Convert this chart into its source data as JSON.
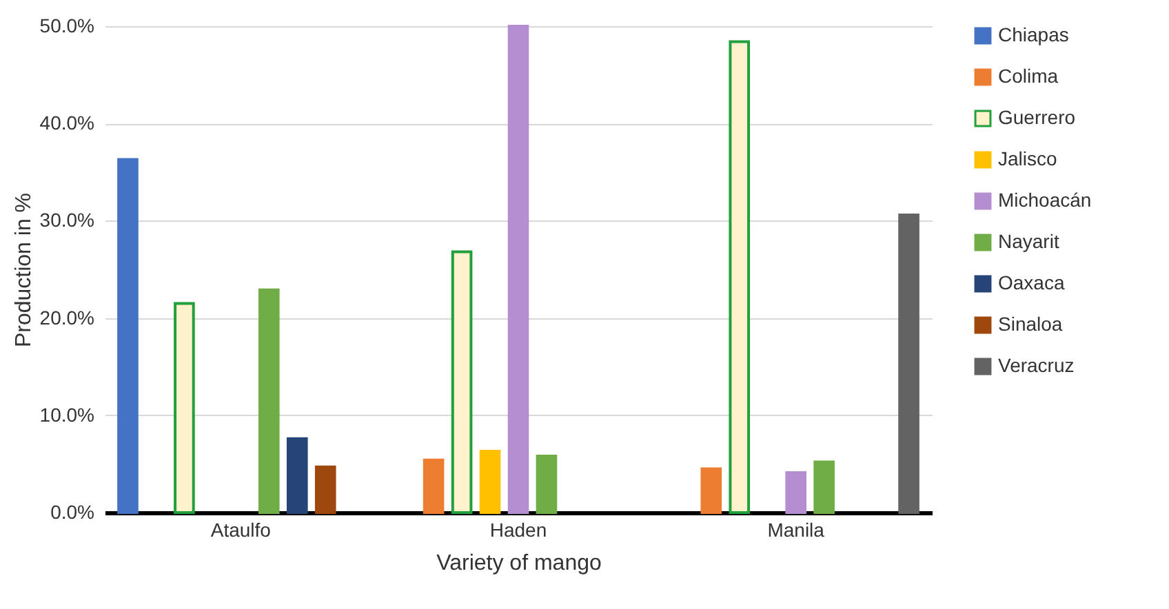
{
  "chart_data": {
    "type": "bar",
    "xlabel": "Variety of mango",
    "ylabel": "Production in %",
    "categories": [
      "Ataulfo",
      "Haden",
      "Manila"
    ],
    "series": [
      {
        "name": "Chiapas",
        "color": "#4472c4",
        "values": [
          36.3,
          null,
          null
        ]
      },
      {
        "name": "Colima",
        "color": "#ed7d31",
        "values": [
          null,
          5.4,
          4.5
        ]
      },
      {
        "name": "Guerrero",
        "color": "#fff2cc",
        "values": [
          21.5,
          26.8,
          48.4
        ]
      },
      {
        "name": "Jalisco",
        "color": "#ffc000",
        "values": [
          null,
          6.3,
          null
        ]
      },
      {
        "name": "Michoacán",
        "color": "#b48ed0",
        "values": [
          null,
          50.0,
          4.1
        ]
      },
      {
        "name": "Nayarit",
        "color": "#70ad47",
        "values": [
          22.9,
          5.8,
          5.2
        ]
      },
      {
        "name": "Oaxaca",
        "color": "#264478",
        "values": [
          7.6,
          null,
          null
        ]
      },
      {
        "name": "Sinaloa",
        "color": "#9e480e",
        "values": [
          4.7,
          null,
          null
        ]
      },
      {
        "name": "Veracruz",
        "color": "#636363",
        "values": [
          null,
          null,
          30.6
        ]
      }
    ],
    "ylim": [
      0,
      50
    ],
    "yticks": [
      {
        "value": 0,
        "label": "0.0%"
      },
      {
        "value": 10,
        "label": "10.0%"
      },
      {
        "value": 20,
        "label": "20.0%"
      },
      {
        "value": 30,
        "label": "30.0%"
      },
      {
        "value": 40,
        "label": "40.0%"
      },
      {
        "value": 50,
        "label": "50.0%"
      }
    ],
    "grid": "y",
    "legend": "right"
  }
}
